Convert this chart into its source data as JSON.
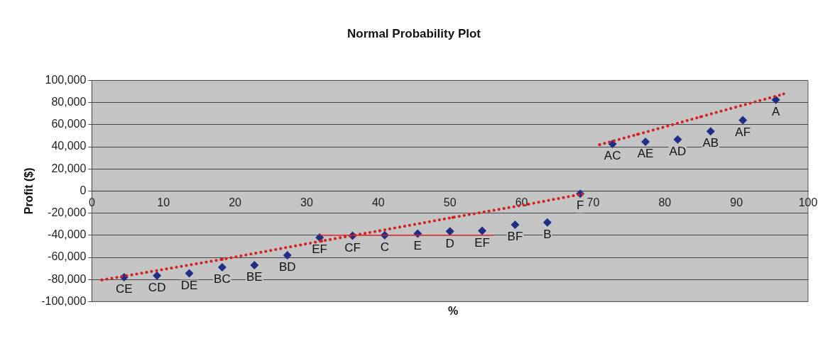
{
  "chart_data": {
    "type": "scatter",
    "title": "Normal Probability Plot",
    "xlabel": "%",
    "ylabel": "Profit ($)",
    "xlim": [
      0,
      100
    ],
    "xticks": [
      0,
      10,
      20,
      30,
      40,
      50,
      60,
      70,
      80,
      90,
      100
    ],
    "ylim": [
      -100000,
      100000
    ],
    "yticks": [
      {
        "value": -100000,
        "label": "-100,000"
      },
      {
        "value": -80000,
        "label": "-80,000"
      },
      {
        "value": -60000,
        "label": "-60,000"
      },
      {
        "value": -40000,
        "label": "-40,000"
      },
      {
        "value": -20000,
        "label": "-20,000"
      },
      {
        "value": 0,
        "label": "0"
      },
      {
        "value": 20000,
        "label": "20,000"
      },
      {
        "value": 40000,
        "label": "40,000"
      },
      {
        "value": 60000,
        "label": "60,000"
      },
      {
        "value": 80000,
        "label": "80,000"
      },
      {
        "value": 100000,
        "label": "100,000"
      }
    ],
    "grid": "y",
    "legend": false,
    "series": [
      {
        "color": "#1f2f86",
        "marker": "diamond",
        "x": [
          4.5,
          9.1,
          13.6,
          18.2,
          22.7,
          27.3,
          31.8,
          36.4,
          40.9,
          45.5,
          50,
          54.5,
          59.1,
          63.6,
          68.2,
          72.7,
          77.3,
          81.8,
          86.4,
          90.9,
          95.5
        ],
        "values": [
          -78000,
          -76500,
          -74500,
          -69000,
          -67000,
          -58000,
          -42000,
          -40500,
          -40000,
          -38500,
          -36500,
          -36000,
          -30500,
          -28500,
          -2500,
          42500,
          44500,
          46500,
          54000,
          64000,
          82500
        ]
      },
      {
        "type": "line",
        "color": "#d42020",
        "marker": "none",
        "line_style": "dotted",
        "x": [
          1.4,
          18.2,
          32.1,
          40.2,
          50.4,
          60.9,
          68.5
        ],
        "values": [
          -80400,
          -61800,
          -45200,
          -35900,
          -23900,
          -12000,
          -2700
        ]
      },
      {
        "type": "line",
        "color": "#d42020",
        "marker": "none",
        "line_style": "dotted",
        "x": [
          70.9,
          76.2,
          85,
          96.6
        ],
        "values": [
          41900,
          51200,
          67100,
          87700
        ]
      },
      {
        "type": "line",
        "color": "#d42020",
        "marker": "none",
        "line_style": "solid",
        "x": [
          31.8,
          56
        ],
        "values": [
          -40000,
          -40000
        ]
      }
    ],
    "annotations": [
      {
        "text": "CE",
        "x": 4.5,
        "y": -78000
      },
      {
        "text": "CD",
        "x": 9.1,
        "y": -76500
      },
      {
        "text": "DE",
        "x": 13.6,
        "y": -74500
      },
      {
        "text": "BC",
        "x": 18.2,
        "y": -69000
      },
      {
        "text": "BE",
        "x": 22.7,
        "y": -67000
      },
      {
        "text": "BD",
        "x": 27.3,
        "y": -58000
      },
      {
        "text": "EF",
        "x": 31.8,
        "y": -42000
      },
      {
        "text": "CF",
        "x": 36.4,
        "y": -40500
      },
      {
        "text": "C",
        "x": 40.9,
        "y": -40000
      },
      {
        "text": "E",
        "x": 45.5,
        "y": -38500
      },
      {
        "text": "D",
        "x": 50,
        "y": -36500
      },
      {
        "text": "EF",
        "x": 54.5,
        "y": -36000
      },
      {
        "text": "BF",
        "x": 59.1,
        "y": -30500
      },
      {
        "text": "B",
        "x": 63.6,
        "y": -28500
      },
      {
        "text": "F",
        "x": 68.2,
        "y": -2500
      },
      {
        "text": "AC",
        "x": 72.7,
        "y": 42500
      },
      {
        "text": "AE",
        "x": 77.3,
        "y": 44500
      },
      {
        "text": "AD",
        "x": 81.8,
        "y": 46500
      },
      {
        "text": "AB",
        "x": 86.4,
        "y": 54000
      },
      {
        "text": "AF",
        "x": 90.9,
        "y": 64000
      },
      {
        "text": "A",
        "x": 95.5,
        "y": 82500
      }
    ]
  }
}
